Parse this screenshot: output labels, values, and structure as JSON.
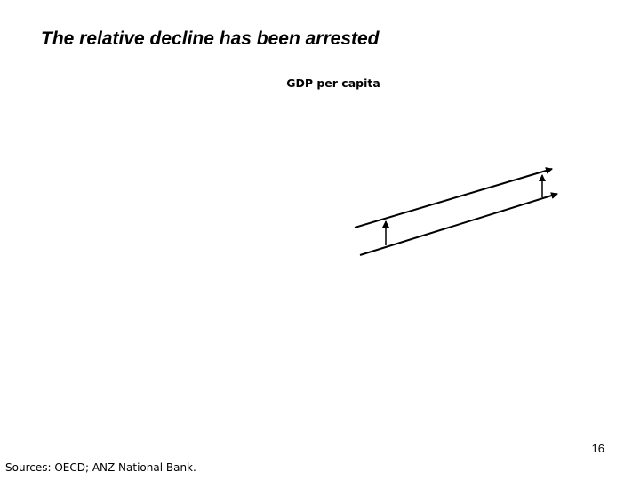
{
  "slide": {
    "title": "The relative decline has been arrested",
    "page_number": "16",
    "sources": "Sources: OECD; ANZ National Bank."
  },
  "diagram": {
    "title": "GDP per capita",
    "line_color": "#000000"
  }
}
